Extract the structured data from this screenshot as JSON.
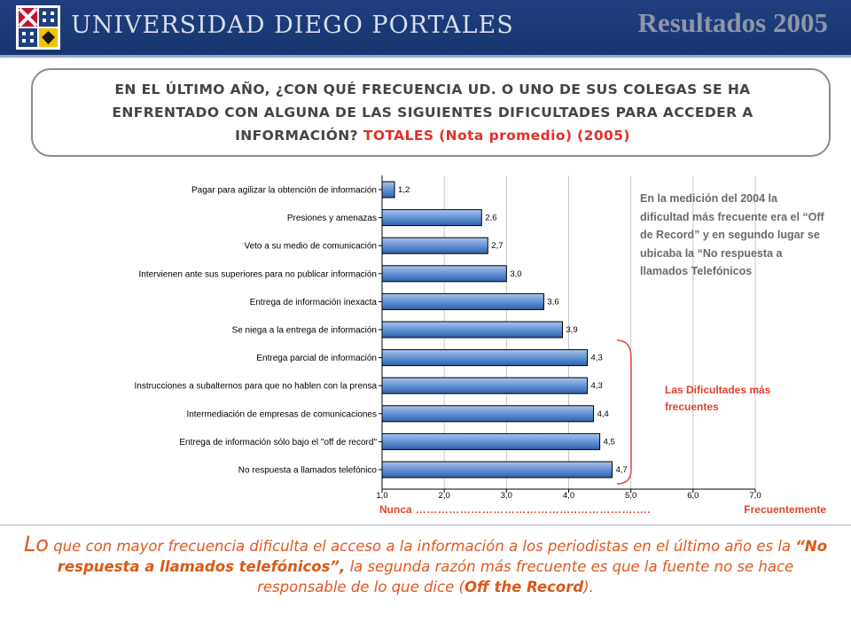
{
  "header": {
    "university_name": "UNIVERSIDAD DIEGO PORTALES",
    "results_title": "Resultados 2005",
    "colors": {
      "background": "#1a3a78",
      "title": "#8f94a8"
    }
  },
  "question": {
    "text": "EN EL ÚLTIMO AÑO, ¿CON QUÉ FRECUENCIA UD. O UNO DE SUS COLEGAS SE HA ENFRENTADO CON ALGUNA DE LAS SIGUIENTES DIFICULTADES PARA ACCEDER A INFORMACIÓN?",
    "highlight": "TOTALES (Nota promedio) (2005)"
  },
  "chart_data": {
    "type": "bar",
    "orientation": "horizontal",
    "categories": [
      "Pagar para agilizar la obtención de información",
      "Presiones y amenazas",
      "Veto a su medio de comunicación",
      "Intervienen ante sus superiores para no publicar información",
      "Entrega de información inexacta",
      "Se niega a la entrega de información",
      "Entrega parcial de información",
      "Instrucciones a subalternos para que no hablen con la prensa",
      "Intermediación de empresas de comunicaciones",
      "Entrega de información sólo bajo el \"off de record\"",
      "No respuesta a llamados telefónico"
    ],
    "values": [
      1.2,
      2.6,
      2.7,
      3.0,
      3.6,
      3.9,
      4.3,
      4.3,
      4.4,
      4.5,
      4.7
    ],
    "value_labels": [
      "1,2",
      "2,6",
      "2,7",
      "3,0",
      "3,6",
      "3,9",
      "4,3",
      "4,3",
      "4,4",
      "4,5",
      "4,7"
    ],
    "xlim": [
      1.0,
      7.0
    ],
    "xticks": [
      1.0,
      2.0,
      3.0,
      4.0,
      5.0,
      6.0,
      7.0
    ],
    "xtick_labels": [
      "1,0",
      "2,0",
      "3,0",
      "4,0",
      "5,0",
      "6,0",
      "7,0"
    ],
    "grid": true,
    "bar_color": "#6f9ad6"
  },
  "note": "En la medición del 2004 la dificultad más frecuente era el “Off de Record” y en segundo lugar se ubicaba la “No respuesta a llamados Telefónicos",
  "bracket_label": "Las Dificultades más frecuentes",
  "scale": {
    "left": "Nunca",
    "dots": "……………………………………..…………….….",
    "right": "Frecuentemente"
  },
  "conclusion": {
    "lead": "Lo",
    "part1": " que con mayor frecuencia dificulta el acceso a la información a los periodistas en el último año es la ",
    "emphasis1": "“No respuesta a llamados telefónicos”,",
    "part2": " la segunda razón más frecuente es que la fuente no se hace responsable de lo que dice (",
    "emphasis2": "Off the Record",
    "part3": ")."
  }
}
